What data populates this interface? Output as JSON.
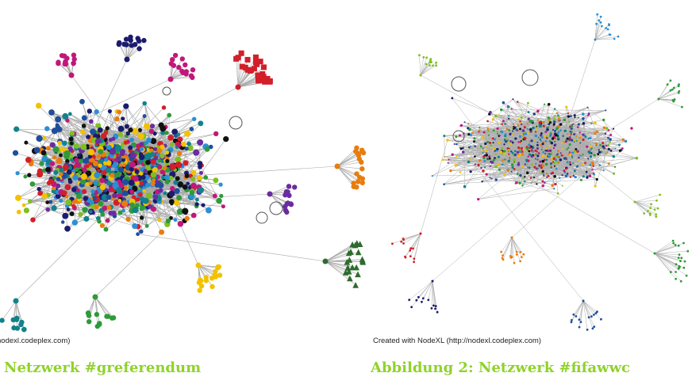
{
  "figures": [
    {
      "credit": "nodexl.codeplex.com)",
      "caption": "Netzwerk #greferendum"
    },
    {
      "credit": "Created with NodeXL (http://nodexl.codeplex.com)",
      "caption": "Abbildung 2: Netzwerk #fifawwc"
    }
  ],
  "colors": {
    "caption": "#8fd32a",
    "edge": "#8a8a8a",
    "nodes": [
      "#1f4e9c",
      "#e87d0e",
      "#7fbf1f",
      "#c2177a",
      "#f2c200",
      "#2a8fd6",
      "#1b1b6e",
      "#d21f2a",
      "#2e9a3a",
      "#6a2ca0",
      "#12828a",
      "#111111"
    ]
  }
}
